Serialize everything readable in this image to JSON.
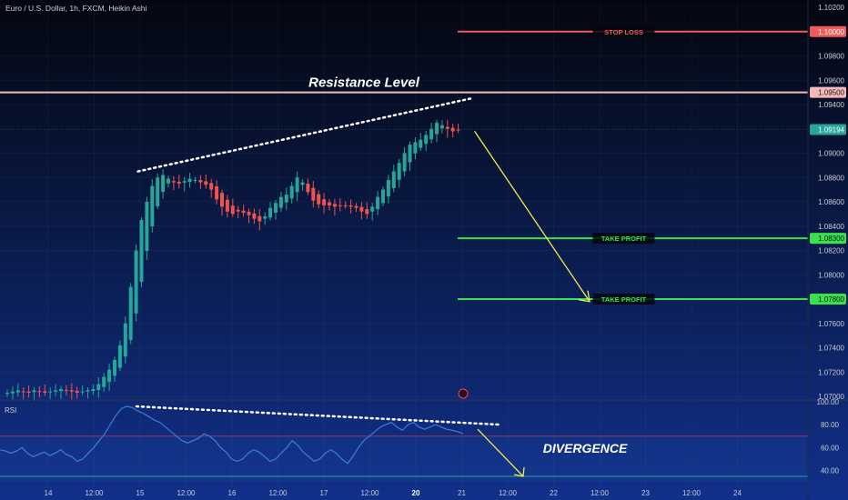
{
  "header": {
    "title": "Euro / U.S. Dollar, 1h, FXCM, Heikin Ashi"
  },
  "colors": {
    "bg_top": "#04070f",
    "bg_bottom": "#11308a",
    "candle_up": "#26a69a",
    "candle_down": "#ef5350",
    "stop_loss": "#f05b5b",
    "take_profit": "#39e14f",
    "resistance": "#f4b8b8",
    "price_badge": "#26a69a",
    "arrow": "#ecec55",
    "rsi_line": "#3b7de0"
  },
  "chart_data": [
    {
      "type": "candlestick",
      "title": "Euro / U.S. Dollar, 1h, FXCM, Heikin Ashi",
      "y_ticks": [
        "1.10200",
        "1.09800",
        "1.09600",
        "1.09400",
        "1.09000",
        "1.08800",
        "1.08600",
        "1.08400",
        "1.08200",
        "1.08000",
        "1.07600",
        "1.07400",
        "1.07200",
        "1.07000"
      ],
      "ylim": [
        1.07,
        1.102
      ],
      "x_ticks": [
        "14",
        "12:00",
        "15",
        "12:00",
        "16",
        "12:00",
        "17",
        "12:00",
        "20",
        "21",
        "12:00",
        "22",
        "12:00",
        "23",
        "12:00",
        "24"
      ],
      "current_price": "1.09194",
      "levels": [
        {
          "label": "STOP LOSS",
          "price": "1.10000"
        },
        {
          "label": "Resistance Level",
          "price": "1.09500"
        },
        {
          "label": "TAKE PROFIT",
          "price": "1.08300"
        },
        {
          "label": "TAKE PROFIT",
          "price": "1.07800"
        }
      ],
      "trendline": {
        "from": 1.0885,
        "to": 1.0945
      },
      "arrow": {
        "from": 1.0918,
        "to": 1.0778
      },
      "candles_close": [
        1.0703,
        1.0704,
        1.0705,
        1.0704,
        1.0703,
        1.0705,
        1.0704,
        1.0703,
        1.0704,
        1.0705,
        1.0706,
        1.0705,
        1.0704,
        1.0703,
        1.0704,
        1.0705,
        1.0706,
        1.071,
        1.0716,
        1.0722,
        1.073,
        1.0742,
        1.076,
        1.079,
        1.082,
        1.0845,
        1.086,
        1.0873,
        1.088,
        1.0882,
        1.0879,
        1.0876,
        1.0875,
        1.0877,
        1.0879,
        1.0878,
        1.0876,
        1.0874,
        1.087,
        1.0862,
        1.0856,
        1.0852,
        1.085,
        1.0852,
        1.0851,
        1.0849,
        1.0846,
        1.0844,
        1.0848,
        1.0855,
        1.0859,
        1.0864,
        1.0866,
        1.0873,
        1.088,
        1.0876,
        1.0868,
        1.0861,
        1.0858,
        1.0857,
        1.0857,
        1.0856,
        1.0857,
        1.0857,
        1.0856,
        1.0855,
        1.0852,
        1.085,
        1.0856,
        1.0864,
        1.087,
        1.0878,
        1.0885,
        1.0892,
        1.09,
        1.0907,
        1.0909,
        1.0911,
        1.0915,
        1.092,
        1.0925,
        1.0923,
        1.092,
        1.0918,
        1.0919
      ]
    },
    {
      "type": "line",
      "title": "RSI",
      "y_ticks": [
        "100.00",
        "80.00",
        "60.00",
        "40.00"
      ],
      "ylim": [
        30,
        100
      ],
      "series": [
        {
          "values": [
            58,
            57,
            55,
            57,
            60,
            55,
            52,
            54,
            56,
            53,
            55,
            58,
            54,
            52,
            48,
            50,
            55,
            60,
            66,
            72,
            80,
            88,
            94,
            96,
            95,
            92,
            90,
            87,
            84,
            82,
            78,
            74,
            70,
            66,
            64,
            66,
            68,
            72,
            70,
            66,
            60,
            56,
            50,
            48,
            50,
            55,
            58,
            56,
            52,
            48,
            50,
            55,
            60,
            66,
            62,
            56,
            52,
            48,
            50,
            55,
            58,
            55,
            50,
            46,
            52,
            60,
            66,
            70,
            74,
            78,
            80,
            82,
            78,
            75,
            80,
            82,
            78,
            76,
            78,
            80,
            78,
            76,
            75,
            74,
            72
          ]
        }
      ],
      "label": "DIVERGENCE"
    }
  ]
}
